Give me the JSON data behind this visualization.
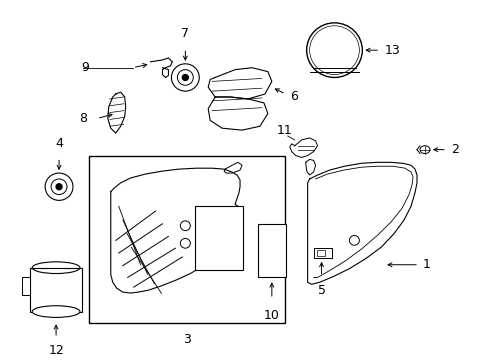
{
  "bg_color": "#ffffff",
  "fig_width": 4.9,
  "fig_height": 3.6,
  "dpi": 100
}
